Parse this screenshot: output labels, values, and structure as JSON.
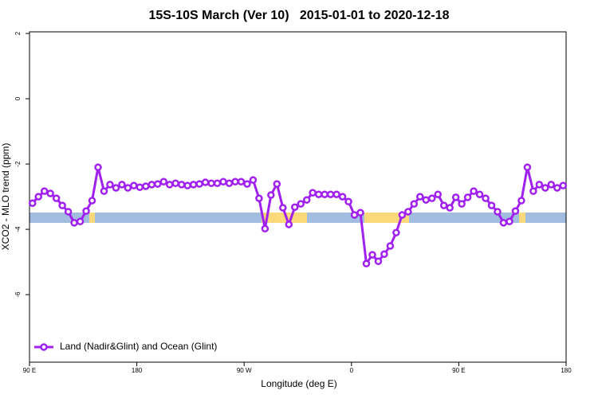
{
  "chart_data": {
    "type": "line",
    "title": "15S-10S March (Ver 10)   2015-01-01 to 2020-12-18",
    "x_label": "Longitude (deg E)",
    "y_label": "XCO2 - MLO trend (ppm)",
    "x": [
      92.5,
      97.5,
      102.5,
      107.5,
      112.5,
      117.5,
      122.5,
      127.5,
      132.5,
      137.5,
      142.5,
      147.5,
      152.5,
      157.5,
      162.5,
      167.5,
      172.5,
      177.5,
      182.5,
      187.5,
      192.5,
      197.5,
      202.5,
      207.5,
      212.5,
      217.5,
      222.5,
      227.5,
      232.5,
      237.5,
      242.5,
      247.5,
      252.5,
      257.5,
      262.5,
      267.5,
      272.5,
      277.5,
      282.5,
      287.5,
      292.5,
      297.5,
      302.5,
      307.5,
      312.5,
      317.5,
      322.5,
      327.5,
      332.5,
      337.5,
      342.5,
      347.5,
      352.5,
      357.5,
      362.5,
      367.5,
      372.5,
      377.5,
      382.5,
      387.5,
      392.5,
      397.5,
      402.5,
      407.5,
      412.5,
      417.5,
      422.5,
      427.5,
      432.5,
      437.5,
      442.5,
      447.5,
      452.5,
      457.5,
      462.5,
      467.5,
      472.5,
      477.5,
      482.5,
      487.5,
      492.5,
      497.5,
      502.5,
      507.5,
      512.5,
      517.5,
      522.5,
      527.5,
      532.5,
      537.5
    ],
    "series": [
      {
        "name": "Land (Nadir&Glint) and Ocean (Glint)",
        "color": "#a020f0",
        "values": [
          -3.2,
          -3.0,
          -2.83,
          -2.9,
          -3.05,
          -3.27,
          -3.46,
          -3.8,
          -3.76,
          -3.44,
          -3.12,
          -2.1,
          -2.83,
          -2.63,
          -2.73,
          -2.63,
          -2.73,
          -2.66,
          -2.71,
          -2.68,
          -2.63,
          -2.61,
          -2.54,
          -2.63,
          -2.59,
          -2.63,
          -2.66,
          -2.63,
          -2.61,
          -2.56,
          -2.59,
          -2.59,
          -2.54,
          -2.59,
          -2.54,
          -2.54,
          -2.61,
          -2.49,
          -3.05,
          -3.98,
          -2.95,
          -2.61,
          -3.34,
          -3.85,
          -3.32,
          -3.22,
          -3.1,
          -2.88,
          -2.93,
          -2.93,
          -2.93,
          -2.93,
          -3.0,
          -3.15,
          -3.56,
          -3.49,
          -5.05,
          -4.78,
          -4.98,
          -4.76,
          -4.51,
          -4.1,
          -3.56,
          -3.46,
          -3.22,
          -3.0,
          -3.1,
          -3.05,
          -2.93,
          -3.27,
          -3.34,
          -3.02,
          -3.22,
          -3.02,
          -2.83,
          -2.93,
          -3.05,
          -3.27,
          -3.46,
          -3.8,
          -3.76,
          -3.44,
          -3.12,
          -2.1,
          -2.83,
          -2.63,
          -2.73,
          -2.63,
          -2.73,
          -2.66
        ]
      }
    ],
    "xlim": [
      90,
      540
    ],
    "xticks": [
      {
        "value": 90,
        "label": "90 E"
      },
      180,
      {
        "value": 270,
        "label": "90 W"
      },
      {
        "value": 360,
        "label": "0"
      },
      {
        "value": 450,
        "label": "90 E"
      },
      {
        "value": 540,
        "label": "180"
      }
    ],
    "ylim": [
      -8.07,
      2.05
    ],
    "yticks": [
      -6,
      -4,
      -2,
      0,
      2
    ],
    "grid": false,
    "legend": "bottom-left"
  }
}
